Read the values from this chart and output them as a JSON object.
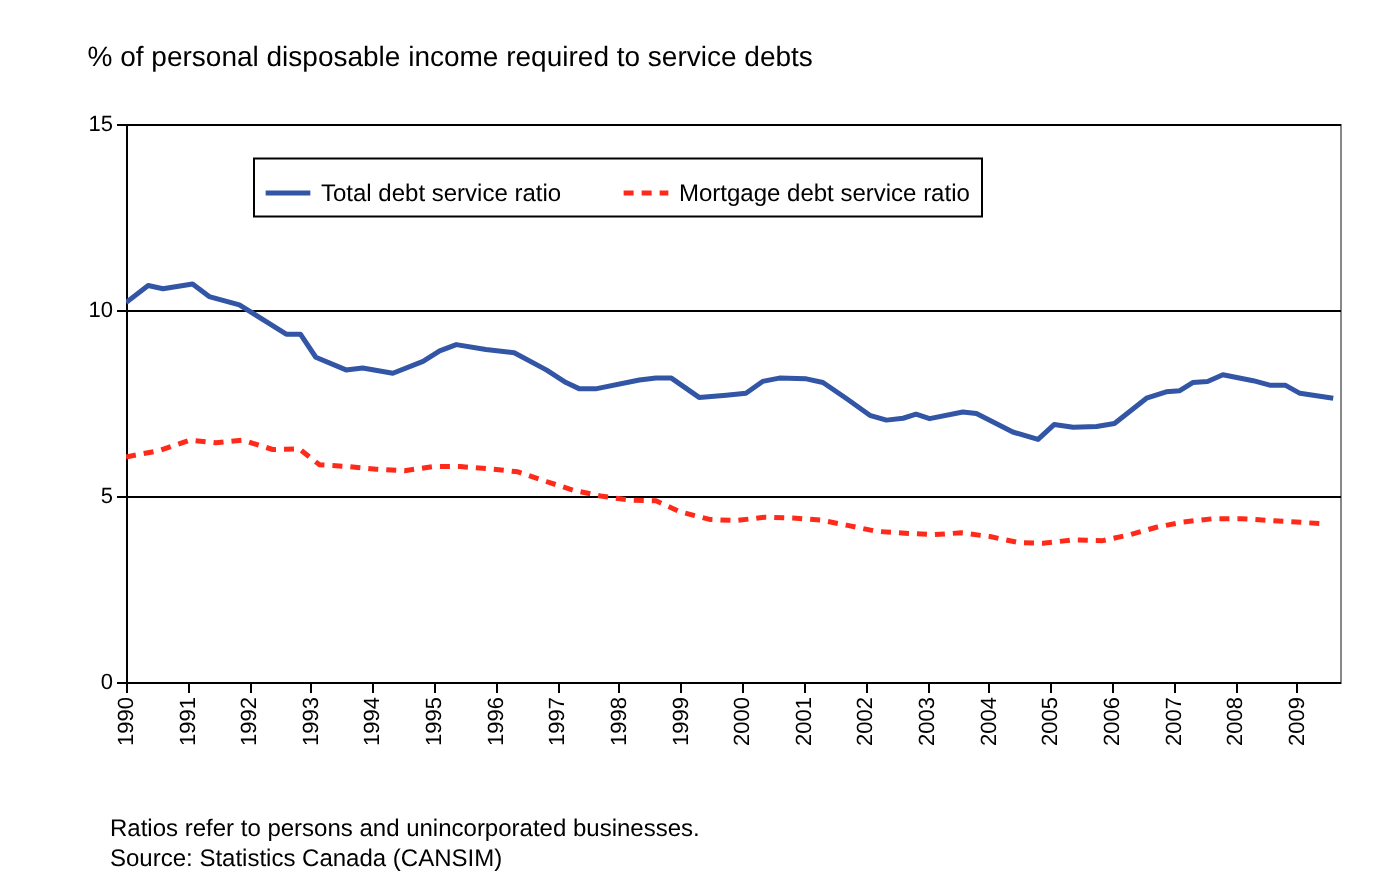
{
  "chart_data": {
    "type": "line",
    "title": "% of personal disposable income required to service debts",
    "annotations": [
      "Ratios refer to persons and unincorporated businesses.",
      "Source: Statistics Canada (CANSIM)"
    ],
    "xlim": [
      1990,
      2009.7
    ],
    "xticks": [
      1990,
      1991,
      1992,
      1993,
      1994,
      1995,
      1996,
      1997,
      1998,
      1999,
      2000,
      2001,
      2002,
      2003,
      2004,
      2005,
      2006,
      2007,
      2008,
      2009
    ],
    "ylim": [
      0,
      15
    ],
    "yticks": [
      0,
      5,
      10,
      15
    ],
    "grid": "y",
    "legend": "top",
    "series": [
      {
        "name": "Total debt service ratio",
        "color": "#3355a5",
        "line_style": "solid",
        "x": [
          1990,
          1990.36,
          1990.6,
          1991.08,
          1991.35,
          1991.84,
          1992.6,
          1992.83,
          1993.08,
          1993.57,
          1993.84,
          1994.33,
          1994.82,
          1995.09,
          1995.36,
          1995.84,
          1996.3,
          1996.82,
          1997.14,
          1997.36,
          1997.62,
          1998.33,
          1998.6,
          1998.85,
          1999.3,
          1999.74,
          2000.06,
          2000.33,
          2000.6,
          2001.04,
          2001.31,
          2001.69,
          2002.07,
          2002.34,
          2002.61,
          2002.82,
          2003.04,
          2003.58,
          2003.8,
          2004.39,
          2004.8,
          2005.06,
          2005.37,
          2005.75,
          2006.04,
          2006.56,
          2006.88,
          2007.1,
          2007.31,
          2007.55,
          2007.8,
          2008.29,
          2008.56,
          2008.81,
          2009.05,
          2009.59
        ],
        "values": [
          10.2,
          10.66,
          10.57,
          10.7,
          10.36,
          10.14,
          9.35,
          9.35,
          8.73,
          8.39,
          8.44,
          8.3,
          8.62,
          8.9,
          9.07,
          8.94,
          8.85,
          8.39,
          8.05,
          7.88,
          7.88,
          8.12,
          8.17,
          8.17,
          7.65,
          7.71,
          7.76,
          8.08,
          8.17,
          8.15,
          8.05,
          7.62,
          7.17,
          7.04,
          7.09,
          7.2,
          7.08,
          7.26,
          7.22,
          6.72,
          6.52,
          6.92,
          6.85,
          6.87,
          6.95,
          7.63,
          7.8,
          7.83,
          8.05,
          8.08,
          8.26,
          8.1,
          7.98,
          7.98,
          7.76,
          7.63
        ]
      },
      {
        "name": "Mortgage debt service ratio",
        "color": "#ff2a1a",
        "line_style": "dashed",
        "x": [
          1990,
          1990.54,
          1991.03,
          1991.46,
          1991.9,
          1992.38,
          1992.81,
          1993.14,
          1993.63,
          1994.06,
          1994.52,
          1994.98,
          1995.43,
          1995.9,
          1996.36,
          1996.82,
          1997.25,
          1997.7,
          1998.17,
          1998.6,
          1999,
          1999.47,
          1999.9,
          2000.37,
          2000.82,
          2001.28,
          2001.71,
          2002.18,
          2002.64,
          2003.1,
          2003.55,
          2004.02,
          2004.48,
          2004.88,
          2005.37,
          2005.85,
          2006.29,
          2006.72,
          2007.15,
          2007.64,
          2008.1,
          2008.56,
          2008.99,
          2009.46
        ],
        "values": [
          6.05,
          6.22,
          6.5,
          6.43,
          6.5,
          6.25,
          6.27,
          5.84,
          5.79,
          5.72,
          5.68,
          5.79,
          5.79,
          5.73,
          5.65,
          5.39,
          5.16,
          5.0,
          4.89,
          4.87,
          4.57,
          4.37,
          4.34,
          4.43,
          4.41,
          4.35,
          4.21,
          4.05,
          4.0,
          3.96,
          4.01,
          3.91,
          3.75,
          3.73,
          3.82,
          3.8,
          3.96,
          4.16,
          4.3,
          4.39,
          4.39,
          4.34,
          4.3,
          4.25
        ]
      }
    ]
  }
}
